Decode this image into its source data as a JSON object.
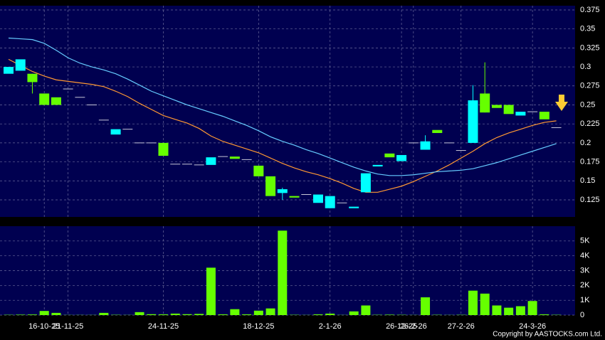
{
  "chart_data": {
    "type": "candlestick",
    "categories": [
      null,
      null,
      null,
      "16-10-25",
      null,
      "21-11-25",
      null,
      null,
      null,
      null,
      null,
      null,
      null,
      "24-11-25",
      null,
      null,
      null,
      null,
      null,
      null,
      null,
      "18-12-25",
      null,
      null,
      null,
      null,
      null,
      "2-1-26",
      null,
      null,
      null,
      null,
      null,
      "26-12-25",
      "26-2-26",
      null,
      null,
      null,
      "27-2-26",
      null,
      null,
      null,
      null,
      null,
      "24-3-26",
      null,
      null
    ],
    "open": [
      0.291,
      0.295,
      0.291,
      0.265,
      0.26,
      0.271,
      0.26,
      0.25,
      0.23,
      0.211,
      0.218,
      0.2,
      0.2,
      0.2,
      0.172,
      0.172,
      0.171,
      0.171,
      0.182,
      0.182,
      0.178,
      0.17,
      0.156,
      0.134,
      0.13,
      0.132,
      0.121,
      0.114,
      0.121,
      0.114,
      0.135,
      0.169,
      0.186,
      0.176,
      0.2,
      0.191,
      0.217,
      0.2,
      0.19,
      0.2,
      0.265,
      0.25,
      0.25,
      0.236,
      0.241,
      0.241,
      0.22
    ],
    "high": [
      0.3,
      0.31,
      0.291,
      0.265,
      0.26,
      0.271,
      0.26,
      0.25,
      0.23,
      0.218,
      0.218,
      0.2,
      0.2,
      0.2,
      0.172,
      0.172,
      0.171,
      0.181,
      0.182,
      0.182,
      0.178,
      0.17,
      0.156,
      0.141,
      0.13,
      0.132,
      0.132,
      0.13,
      0.121,
      0.116,
      0.16,
      0.171,
      0.186,
      0.184,
      0.2,
      0.21,
      0.217,
      0.2,
      0.19,
      0.276,
      0.306,
      0.25,
      0.25,
      0.241,
      0.241,
      0.241,
      0.22
    ],
    "low": [
      0.291,
      0.295,
      0.265,
      0.25,
      0.25,
      0.271,
      0.26,
      0.25,
      0.23,
      0.211,
      0.218,
      0.2,
      0.2,
      0.183,
      0.172,
      0.172,
      0.171,
      0.171,
      0.182,
      0.179,
      0.178,
      0.156,
      0.13,
      0.125,
      0.128,
      0.132,
      0.121,
      0.114,
      0.121,
      0.114,
      0.135,
      0.169,
      0.181,
      0.176,
      0.2,
      0.191,
      0.213,
      0.2,
      0.19,
      0.2,
      0.24,
      0.246,
      0.238,
      0.236,
      0.241,
      0.231,
      0.22
    ],
    "close": [
      0.3,
      0.31,
      0.28,
      0.25,
      0.25,
      0.271,
      0.26,
      0.25,
      0.23,
      0.218,
      0.218,
      0.2,
      0.2,
      0.183,
      0.172,
      0.172,
      0.171,
      0.181,
      0.182,
      0.179,
      0.178,
      0.156,
      0.13,
      0.139,
      0.128,
      0.132,
      0.132,
      0.13,
      0.121,
      0.116,
      0.16,
      0.171,
      0.181,
      0.184,
      0.2,
      0.202,
      0.213,
      0.2,
      0.19,
      0.256,
      0.24,
      0.246,
      0.238,
      0.241,
      0.241,
      0.231,
      0.22
    ],
    "up_color": "#00ffff",
    "down_color": "#66ff00",
    "flat_color": "#c8c8d8",
    "moving_averages": [
      {
        "color": "#ff9933",
        "values": [
          0.31,
          0.302,
          0.294,
          0.288,
          0.283,
          0.281,
          0.279,
          0.277,
          0.274,
          0.268,
          0.261,
          0.252,
          0.244,
          0.236,
          0.231,
          0.226,
          0.219,
          0.209,
          0.202,
          0.197,
          0.192,
          0.187,
          0.18,
          0.173,
          0.167,
          0.162,
          0.158,
          0.153,
          0.147,
          0.14,
          0.135,
          0.135,
          0.139,
          0.143,
          0.149,
          0.156,
          0.163,
          0.171,
          0.18,
          0.189,
          0.199,
          0.207,
          0.213,
          0.218,
          0.223,
          0.227,
          0.229
        ]
      },
      {
        "color": "#66ccff",
        "values": [
          0.338,
          0.337,
          0.336,
          0.331,
          0.322,
          0.312,
          0.305,
          0.3,
          0.296,
          0.291,
          0.284,
          0.276,
          0.268,
          0.262,
          0.256,
          0.25,
          0.245,
          0.24,
          0.235,
          0.229,
          0.223,
          0.216,
          0.208,
          0.202,
          0.197,
          0.191,
          0.186,
          0.18,
          0.174,
          0.168,
          0.163,
          0.159,
          0.157,
          0.157,
          0.158,
          0.16,
          0.162,
          0.163,
          0.164,
          0.166,
          0.17,
          0.174,
          0.179,
          0.184,
          0.189,
          0.194,
          0.199
        ]
      }
    ],
    "ylim": [
      0.1025,
      0.3806
    ],
    "yticks": [
      0.125,
      0.15,
      0.175,
      0.2,
      0.225,
      0.25,
      0.275,
      0.3,
      0.325,
      0.35,
      0.375
    ],
    "grid": true,
    "volume": {
      "color": "#66ff00",
      "values": [
        20,
        30,
        40,
        280,
        150,
        10,
        10,
        10,
        150,
        20,
        10,
        200,
        60,
        50,
        100,
        60,
        80,
        3200,
        50,
        400,
        50,
        300,
        450,
        5700,
        20,
        10,
        50,
        100,
        10,
        250,
        650,
        20,
        30,
        20,
        10,
        1200,
        20,
        10,
        20,
        1650,
        1450,
        650,
        500,
        600,
        950,
        50,
        20
      ],
      "ylim": [
        0,
        6000
      ],
      "yticks": [
        0,
        {
          "value": 1000,
          "label": "1K"
        },
        {
          "value": 2000,
          "label": "2K"
        },
        {
          "value": 3000,
          "label": "3K"
        },
        {
          "value": 4000,
          "label": "4K"
        },
        {
          "value": 5000,
          "label": "5K"
        }
      ]
    },
    "copyright": "Copyright by AASTOCKS.com Ltd."
  }
}
